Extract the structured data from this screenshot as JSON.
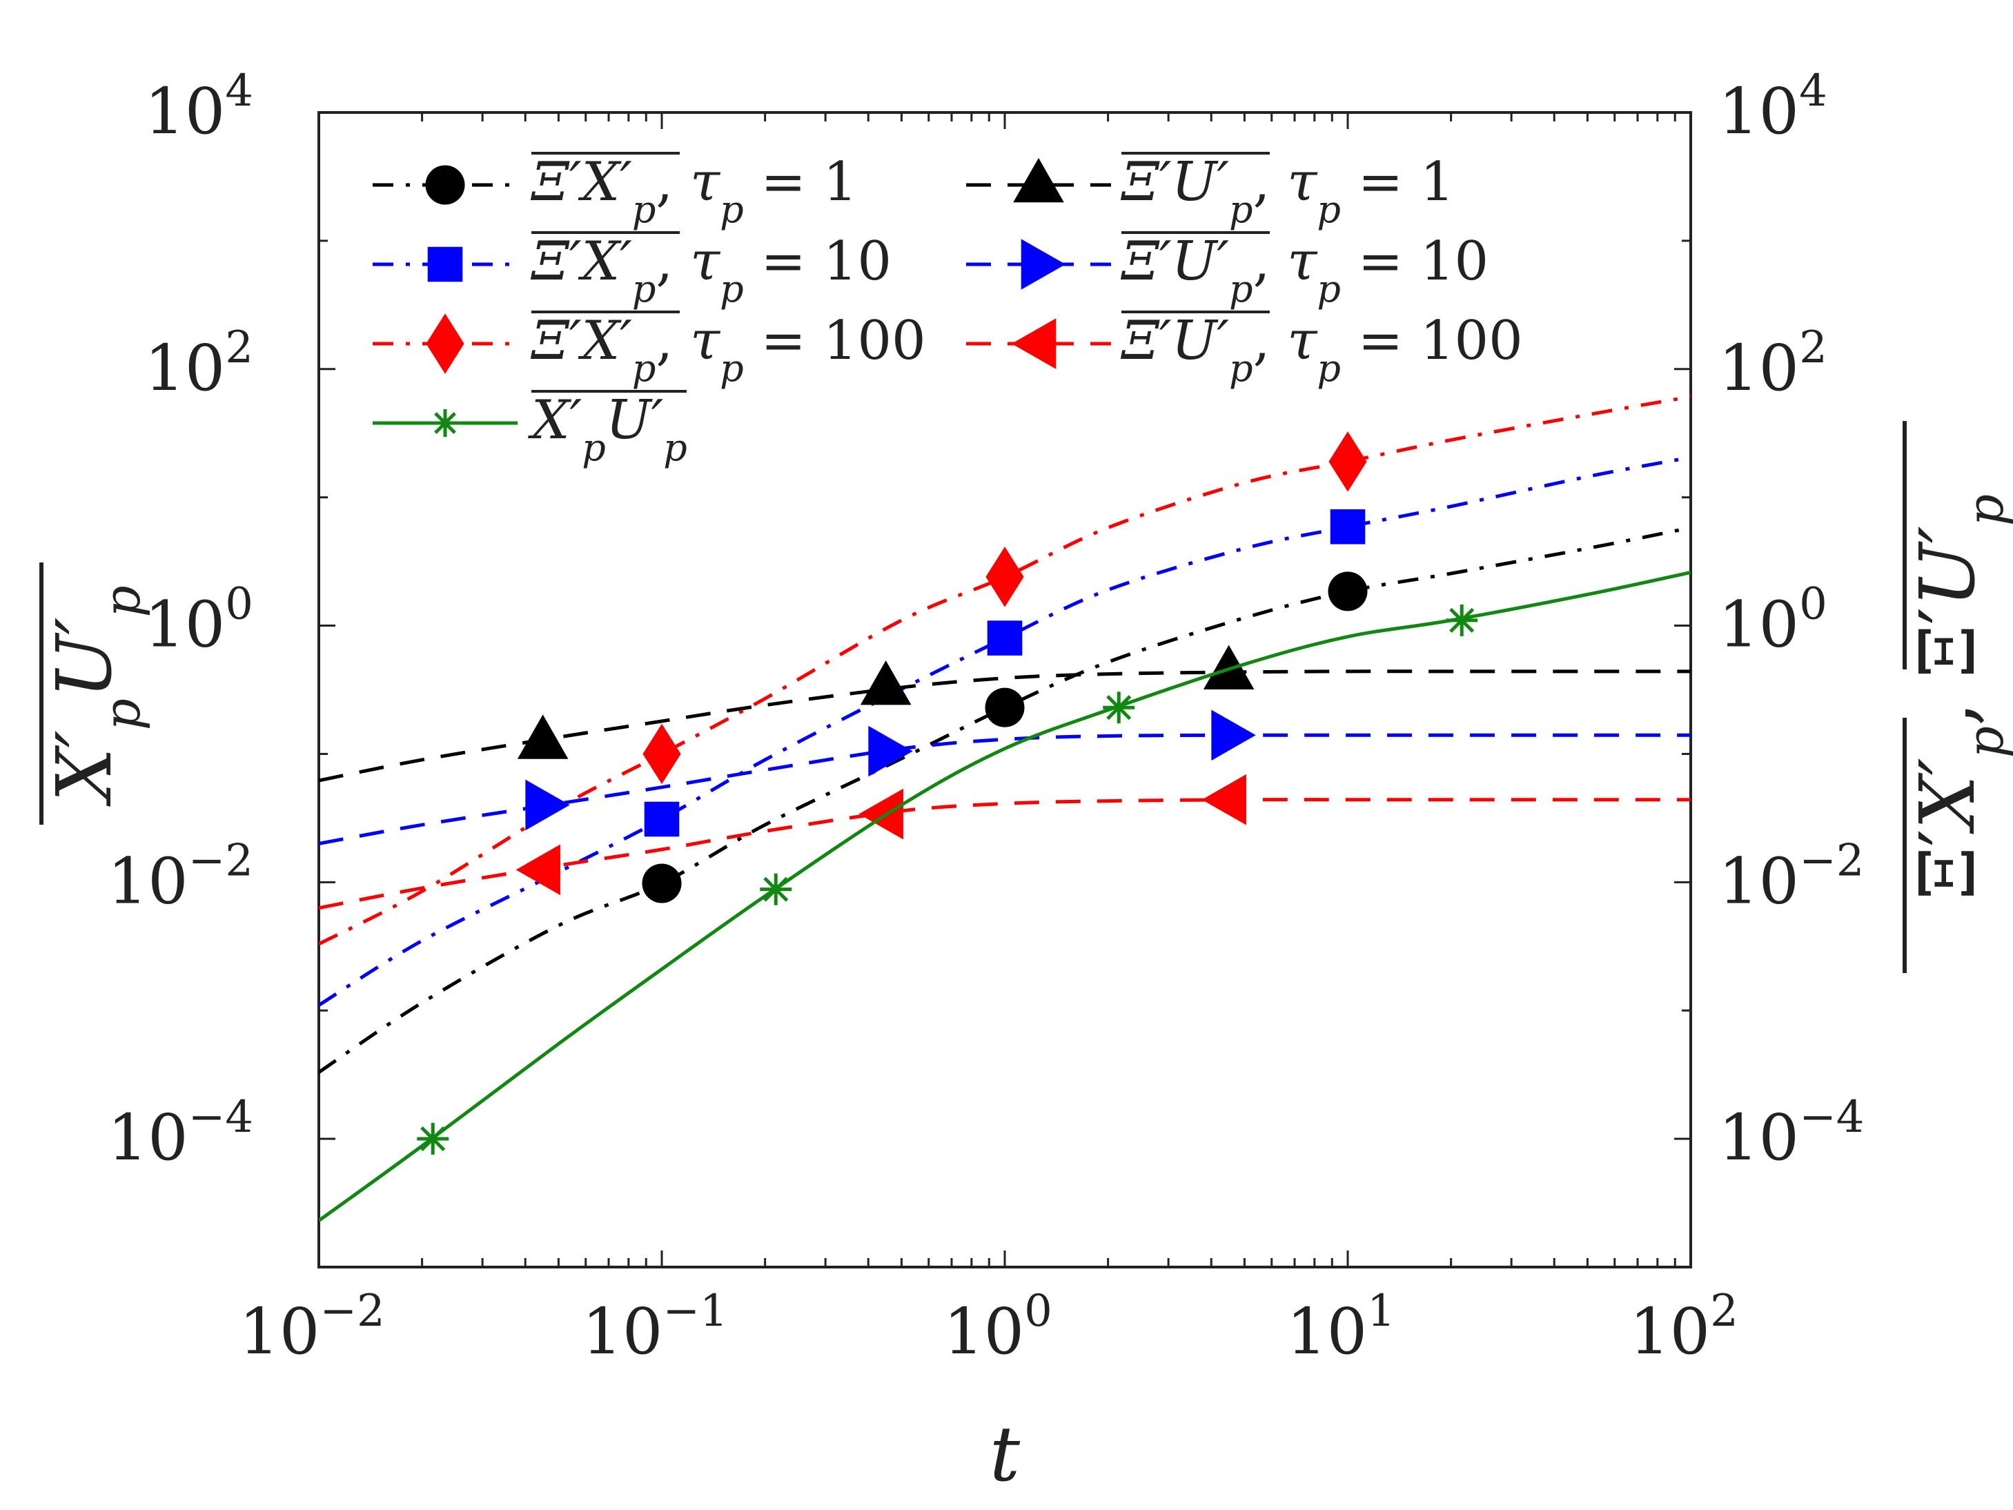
{
  "chart_data": {
    "type": "line",
    "xscale": "log",
    "yscale": "log",
    "xlim": [
      0.01,
      100
    ],
    "ylim": [
      1e-05,
      10000
    ],
    "xlabel": "t",
    "ylabel_left": "X'_p U'_p (overlined)",
    "ylabel_right": "Ξ'X'_p, Ξ'U'_p (overlined)",
    "x_ticks": [
      {
        "value": 0.01,
        "base": "10",
        "exp": "−2"
      },
      {
        "value": 0.1,
        "base": "10",
        "exp": "−1"
      },
      {
        "value": 1,
        "base": "10",
        "exp": "0"
      },
      {
        "value": 10,
        "base": "10",
        "exp": "1"
      },
      {
        "value": 100,
        "base": "10",
        "exp": "2"
      }
    ],
    "y_ticks": [
      {
        "value": 0.0001,
        "base": "10",
        "exp": "−4"
      },
      {
        "value": 0.01,
        "base": "10",
        "exp": "−2"
      },
      {
        "value": 1,
        "base": "10",
        "exp": "0"
      },
      {
        "value": 100,
        "base": "10",
        "exp": "2"
      },
      {
        "value": 10000,
        "base": "10",
        "exp": "4"
      }
    ],
    "legend_position": "top-left",
    "series": [
      {
        "id": "xi_x_tau1",
        "name": "Ξ'X'_p, τ_p = 1",
        "legend": {
          "over": "Ξ′X′",
          "sub": "p",
          "tau": "1"
        },
        "color": "#000000",
        "dash": "dashdot",
        "marker": "circle",
        "x": [
          0.01,
          0.02,
          0.05,
          0.1,
          0.2,
          0.5,
          1,
          2,
          5,
          10,
          20,
          50,
          100
        ],
        "y": [
          0.00033,
          0.00115,
          0.0046,
          0.0098,
          0.028,
          0.092,
          0.23,
          0.52,
          1.15,
          1.85,
          2.55,
          4.0,
          5.8
        ],
        "marker_x": [
          0.1,
          1,
          10
        ],
        "marker_y": [
          0.0098,
          0.23,
          1.85
        ]
      },
      {
        "id": "xi_x_tau10",
        "name": "Ξ'X'_p, τ_p = 10",
        "legend": {
          "over": "Ξ′X′",
          "sub": "p",
          "tau": "10"
        },
        "color": "#0000ff",
        "dash": "dashdot",
        "marker": "square",
        "x": [
          0.01,
          0.02,
          0.05,
          0.1,
          0.2,
          0.5,
          1,
          2,
          5,
          10,
          20,
          50,
          100
        ],
        "y": [
          0.0011,
          0.0035,
          0.012,
          0.031,
          0.09,
          0.32,
          0.8,
          1.9,
          4.0,
          5.9,
          8.5,
          14.5,
          20.5
        ],
        "marker_x": [
          0.1,
          1,
          10
        ],
        "marker_y": [
          0.031,
          0.8,
          5.9
        ]
      },
      {
        "id": "xi_x_tau100",
        "name": "Ξ'X'_p, τ_p = 100",
        "legend": {
          "over": "Ξ′X′",
          "sub": "p",
          "tau": "100"
        },
        "color": "#ff0000",
        "dash": "dashdot",
        "marker": "diamond",
        "x": [
          0.01,
          0.02,
          0.05,
          0.1,
          0.2,
          0.5,
          1,
          2,
          5,
          10,
          20,
          50,
          100
        ],
        "y": [
          0.0033,
          0.0085,
          0.038,
          0.1,
          0.27,
          1.1,
          2.4,
          5.8,
          13.0,
          19.0,
          28.0,
          44.0,
          61.0
        ],
        "marker_x": [
          0.1,
          1,
          10
        ],
        "marker_y": [
          0.1,
          2.4,
          19.0
        ]
      },
      {
        "id": "xi_u_tau1",
        "name": "Ξ'U'_p, τ_p = 1",
        "legend": {
          "over": "Ξ′U′",
          "sub": "p",
          "tau": "1"
        },
        "color": "#000000",
        "dash": "dashed",
        "marker": "triangle-up",
        "x": [
          0.01,
          0.02,
          0.05,
          0.1,
          0.2,
          0.5,
          1,
          2,
          5,
          10,
          20,
          50,
          100
        ],
        "y": [
          0.062,
          0.09,
          0.135,
          0.18,
          0.24,
          0.33,
          0.39,
          0.42,
          0.435,
          0.44,
          0.44,
          0.44,
          0.44
        ],
        "marker_x": [
          0.045,
          0.45,
          4.5
        ],
        "marker_y": [
          0.125,
          0.33,
          0.435
        ]
      },
      {
        "id": "xi_u_tau10",
        "name": "Ξ'U'_p, τ_p = 10",
        "legend": {
          "over": "Ξ′U′",
          "sub": "p",
          "tau": "10"
        },
        "color": "#0000ff",
        "dash": "dashed",
        "marker": "triangle-right",
        "x": [
          0.01,
          0.02,
          0.05,
          0.1,
          0.2,
          0.5,
          1,
          2,
          5,
          10,
          20,
          50,
          100
        ],
        "y": [
          0.02,
          0.028,
          0.041,
          0.055,
          0.075,
          0.11,
          0.13,
          0.138,
          0.14,
          0.14,
          0.14,
          0.14,
          0.14
        ],
        "marker_x": [
          0.045,
          0.45,
          4.5
        ],
        "marker_y": [
          0.04,
          0.105,
          0.14
        ]
      },
      {
        "id": "xi_u_tau100",
        "name": "Ξ'U'_p, τ_p = 100",
        "legend": {
          "over": "Ξ′U′",
          "sub": "p",
          "tau": "100"
        },
        "color": "#ff0000",
        "dash": "dashed",
        "marker": "triangle-left",
        "x": [
          0.01,
          0.02,
          0.05,
          0.1,
          0.2,
          0.5,
          1,
          2,
          5,
          10,
          20,
          50,
          100
        ],
        "y": [
          0.0063,
          0.009,
          0.0135,
          0.018,
          0.025,
          0.036,
          0.041,
          0.043,
          0.044,
          0.044,
          0.044,
          0.044,
          0.044
        ],
        "marker_x": [
          0.045,
          0.45,
          4.5
        ],
        "marker_y": [
          0.0125,
          0.034,
          0.044
        ]
      },
      {
        "id": "xu",
        "name": "X'_p U'_p",
        "legend": {
          "over": "X′",
          "mid": "U′",
          "sub": "p",
          "tau": ""
        },
        "color": "#118811",
        "dash": "solid",
        "marker": "asterisk",
        "x": [
          0.01,
          0.02,
          0.05,
          0.1,
          0.2,
          0.5,
          1,
          2,
          5,
          10,
          20,
          50,
          100
        ],
        "y": [
          2.3e-05,
          8.8e-05,
          0.00055,
          0.0021,
          0.0078,
          0.04,
          0.11,
          0.22,
          0.5,
          0.82,
          1.1,
          1.75,
          2.6
        ],
        "marker_x": [
          0.0215,
          0.215,
          2.15,
          21.5
        ],
        "marker_y": [
          0.0001,
          0.0088,
          0.23,
          1.1
        ]
      }
    ]
  }
}
